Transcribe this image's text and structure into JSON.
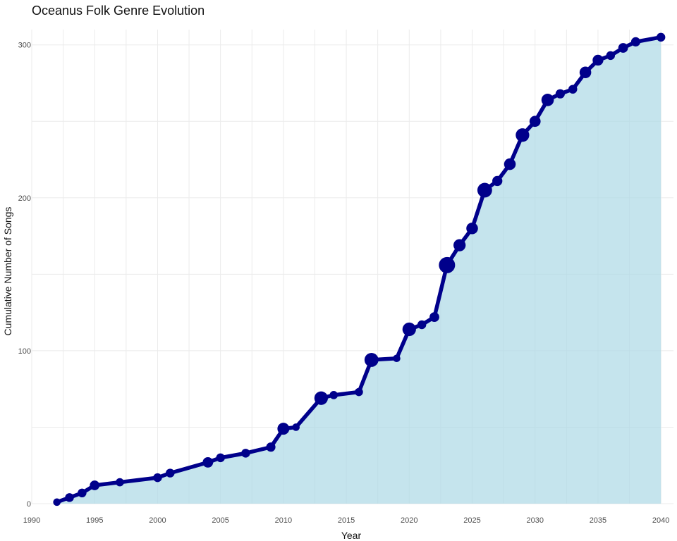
{
  "chart_data": {
    "type": "area",
    "title": "Oceanus Folk Genre Evolution",
    "xlabel": "Year",
    "ylabel": "Cumulative Number of Songs",
    "xlim": [
      1990,
      2041
    ],
    "ylim": [
      0,
      310
    ],
    "x_ticks": [
      1990,
      1995,
      2000,
      2005,
      2010,
      2015,
      2020,
      2025,
      2030,
      2035,
      2040
    ],
    "y_ticks": [
      0,
      100,
      200,
      300
    ],
    "grid": true,
    "colors": {
      "line": "#00008B",
      "fill": "#ADD8E6",
      "grid": "#EBEBEB"
    },
    "series": [
      {
        "x": [
          1992,
          1993,
          1994,
          1995,
          1997,
          2000,
          2001,
          2004,
          2005,
          2007,
          2009,
          2010,
          2011,
          2013,
          2014,
          2016,
          2017,
          2019,
          2020,
          2021,
          2022,
          2023,
          2024,
          2025,
          2026,
          2027,
          2028,
          2029,
          2030,
          2031,
          2032,
          2033,
          2034,
          2035,
          2036,
          2037,
          2038,
          2040
        ],
        "y": [
          1,
          4,
          7,
          12,
          14,
          17,
          20,
          27,
          30,
          33,
          37,
          49,
          50,
          69,
          71,
          73,
          94,
          95,
          114,
          117,
          122,
          156,
          169,
          180,
          205,
          211,
          222,
          241,
          250,
          264,
          268,
          271,
          282,
          290,
          293,
          298,
          302,
          305
        ],
        "songs_per_year": [
          1,
          3,
          3,
          5,
          2,
          3,
          3,
          7,
          3,
          3,
          4,
          12,
          1,
          19,
          2,
          2,
          21,
          1,
          19,
          3,
          5,
          34,
          13,
          11,
          25,
          6,
          11,
          19,
          9,
          14,
          4,
          3,
          11,
          8,
          3,
          5,
          4,
          3
        ]
      }
    ]
  }
}
